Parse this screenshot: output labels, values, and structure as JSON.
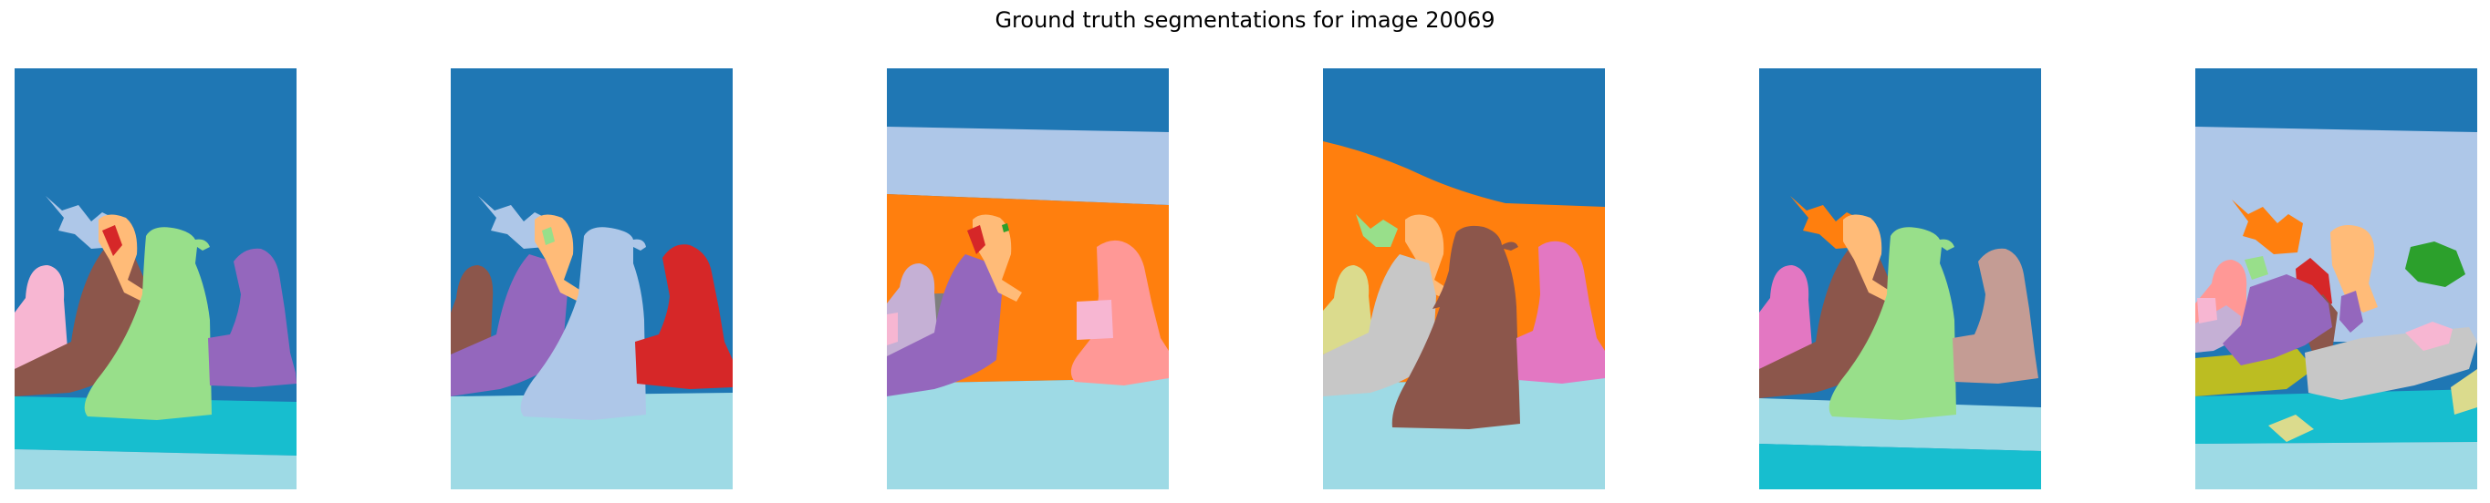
{
  "figure": {
    "title": "Ground truth segmentations for image 20069"
  },
  "palette": {
    "blue": "#1f77b4",
    "light_blue": "#aec7e8",
    "orange": "#ff7f0e",
    "light_orange": "#ffbb78",
    "green": "#2ca02c",
    "light_green": "#98df8a",
    "red": "#d62728",
    "pink_red": "#ff9896",
    "purple": "#9467bd",
    "lavender": "#c5b0d5",
    "brown": "#8c564b",
    "tan": "#c49c94",
    "pink": "#e377c2",
    "light_pink": "#f7b6d2",
    "gray": "#7f7f7f",
    "light_gray": "#c7c7c7",
    "olive": "#bcbd22",
    "light_olive": "#dbdb8d",
    "cyan": "#17becf",
    "light_cyan": "#9edae5"
  },
  "panels": [
    {
      "index": 1,
      "region_count": 10
    },
    {
      "index": 2,
      "region_count": 9
    },
    {
      "index": 3,
      "region_count": 11
    },
    {
      "index": 4,
      "region_count": 9
    },
    {
      "index": 5,
      "region_count": 10
    },
    {
      "index": 6,
      "region_count": 16
    }
  ]
}
